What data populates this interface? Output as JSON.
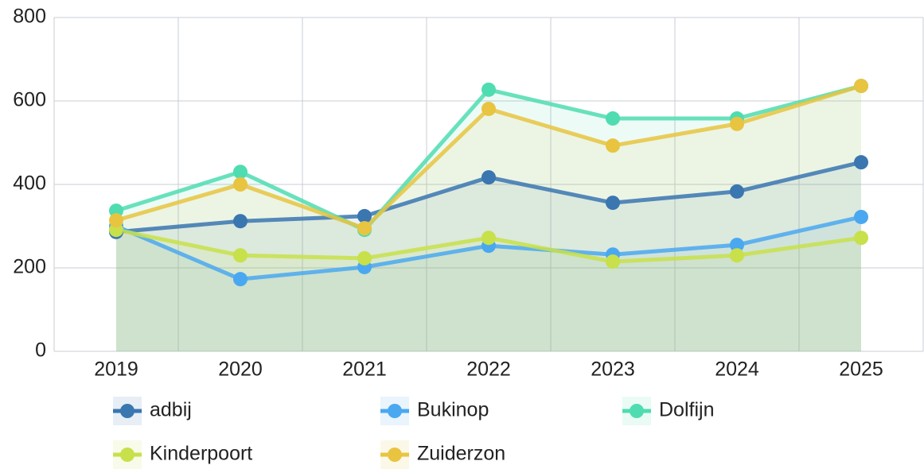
{
  "chart_data": {
    "type": "line",
    "categories": [
      "2019",
      "2020",
      "2021",
      "2022",
      "2023",
      "2024",
      "2025"
    ],
    "series": [
      {
        "name": "adbij",
        "color": "#3a76b0",
        "values": [
          286,
          312,
          324,
          417,
          356,
          383,
          453
        ]
      },
      {
        "name": "Bukinop",
        "color": "#4aa8f0",
        "values": [
          300,
          173,
          202,
          253,
          232,
          255,
          322
        ]
      },
      {
        "name": "Dolfijn",
        "color": "#4fdcb0",
        "values": [
          337,
          430,
          291,
          627,
          558,
          558,
          636
        ]
      },
      {
        "name": "Kinderpoort",
        "color": "#c8e04a",
        "values": [
          291,
          230,
          223,
          272,
          215,
          230,
          272
        ]
      },
      {
        "name": "Zuiderzon",
        "color": "#e8c440",
        "values": [
          314,
          400,
          295,
          581,
          493,
          545,
          636
        ]
      }
    ],
    "ylim": [
      0,
      800
    ],
    "yticks": [
      0,
      200,
      400,
      600,
      800
    ],
    "grid": true,
    "area": true,
    "legend": "bottom"
  }
}
